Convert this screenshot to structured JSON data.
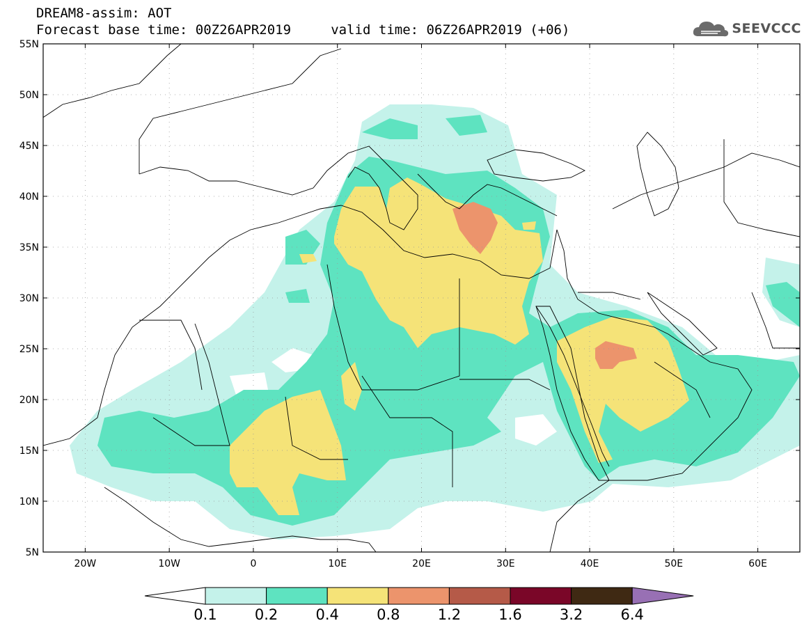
{
  "header": {
    "title_line1": "DREAM8-assim: AOT",
    "title_line2": "Forecast base time: 00Z26APR2019     valid time: 06Z26APR2019 (+06)"
  },
  "logo": {
    "text": "SEEVCCC",
    "icon": "cloud-logo-icon"
  },
  "map": {
    "lat_labels": [
      "55N",
      "50N",
      "45N",
      "40N",
      "35N",
      "30N",
      "25N",
      "20N",
      "15N",
      "10N",
      "5N"
    ],
    "lat_values": [
      55,
      50,
      45,
      40,
      35,
      30,
      25,
      20,
      15,
      10,
      5
    ],
    "lon_labels": [
      "20W",
      "10W",
      "0",
      "10E",
      "20E",
      "30E",
      "40E",
      "50E",
      "60E"
    ],
    "lon_values": [
      -20,
      -10,
      0,
      10,
      20,
      30,
      40,
      50,
      60
    ],
    "lon_range": [
      -25,
      65
    ],
    "lat_range": [
      5,
      55
    ]
  },
  "colorbar": {
    "labels": [
      "0.1",
      "0.2",
      "0.4",
      "0.8",
      "1.2",
      "1.6",
      "3.2",
      "6.4"
    ],
    "colors": [
      "#ffffff",
      "#c4f2ea",
      "#5ee3c0",
      "#f5e378",
      "#ec946c",
      "#b55a48",
      "#7a0628",
      "#3f2913",
      "#9870b4"
    ]
  }
}
